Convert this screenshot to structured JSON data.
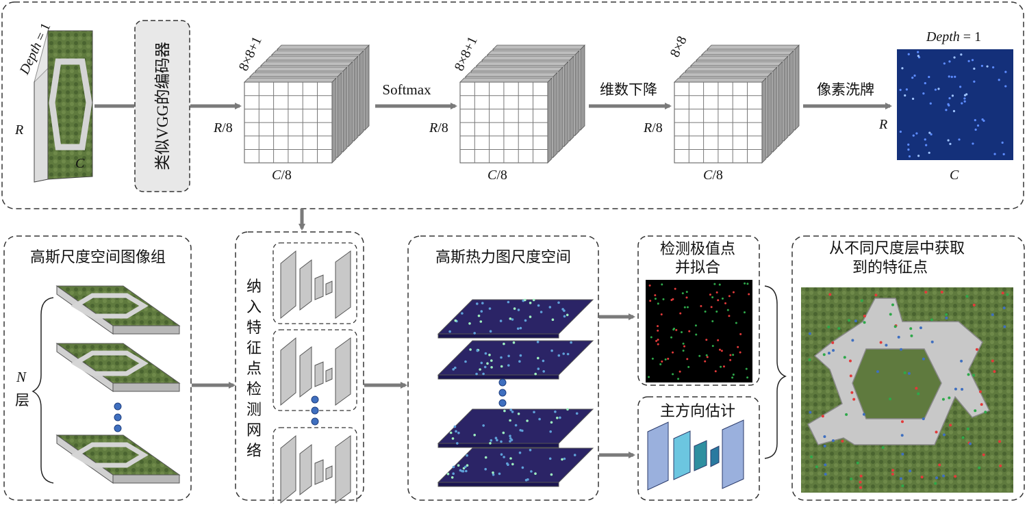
{
  "top": {
    "input": {
      "depth_label": "Depth",
      "depth_value": "= 1",
      "height_label": "R",
      "width_label": "C"
    },
    "encoder_label": "类似VGG的编码器",
    "stages": [
      {
        "channels": "8×8+1",
        "height": "R",
        "height_suffix": "/8",
        "width": "C",
        "width_suffix": "/8"
      },
      {
        "channels": "8×8+1",
        "height": "R",
        "height_suffix": "/8",
        "width": "C",
        "width_suffix": "/8"
      },
      {
        "channels": "8×8",
        "height": "R",
        "height_suffix": "/8",
        "width": "C",
        "width_suffix": "/8"
      }
    ],
    "ops": [
      "Softmax",
      "维数下降",
      "像素洗牌"
    ],
    "output": {
      "depth_label": "Depth",
      "depth_value": "= 1",
      "height_label": "R",
      "width_label": "C"
    }
  },
  "bottom": {
    "pyramid": {
      "title": "高斯尺度空间图像组",
      "levels_label_n": "N",
      "levels_label_suffix": "层"
    },
    "network": {
      "title_chars": [
        "纳",
        "入",
        "特",
        "征",
        "点",
        "检",
        "测",
        "网",
        "络"
      ]
    },
    "heatmap": {
      "title": "高斯热力图尺度空间"
    },
    "detect": {
      "title_lines": [
        "检测极值点",
        "并拟合"
      ]
    },
    "orientation": {
      "title": "主方向估计"
    },
    "result": {
      "title_lines": [
        "从不同尺度层中获取",
        "到的特征点"
      ]
    }
  },
  "colors": {
    "arrow": "#7a7a7a",
    "cube_face": "#ffffff",
    "cube_side": "#9a9a9a",
    "output_bg": "#14307a",
    "heat_bg": "#2b2466",
    "dot_blue": "#3f6fbf",
    "building_roof": "#c8c8c8",
    "grass": "#5f7a3e",
    "ori_blue": "#9ab0dd",
    "ori_cyan": "#6cc6e0",
    "ori_teal": "#2f8fa0"
  }
}
